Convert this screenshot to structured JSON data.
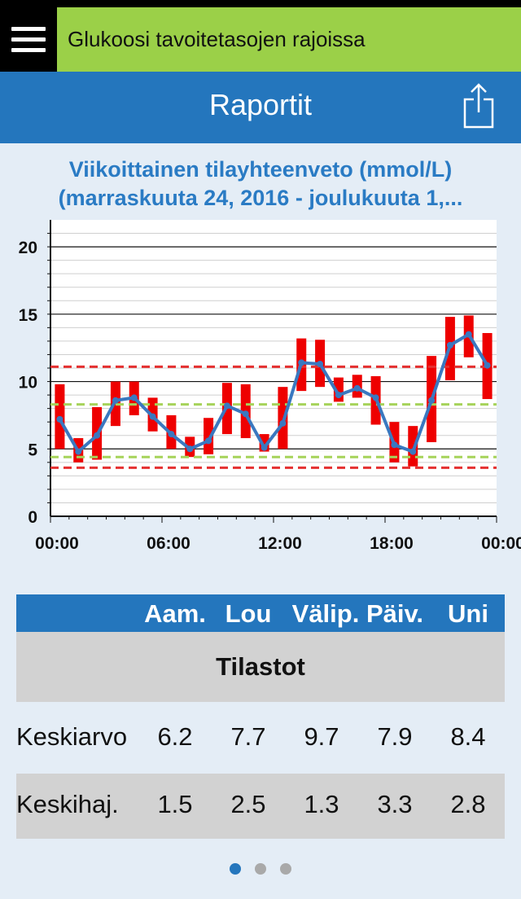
{
  "topbar": {
    "banner_text": "Glukoosi tavoitetasojen rajoissa"
  },
  "header": {
    "title": "Raportit"
  },
  "chart_title_line1": "Viikoittainen tilayhteenveto (mmol/L)",
  "chart_title_line2": "(marraskuuta 24, 2016 - joulukuuta 1,...",
  "colors": {
    "accent": "#2476bd",
    "banner": "#9bd048",
    "range_bar": "#ee0000",
    "mean_line": "#3a78c0",
    "limit_red": "#e53030",
    "limit_green": "#a6d35a"
  },
  "chart_data": {
    "type": "line",
    "title": "Viikoittainen tilayhteenveto (mmol/L)",
    "xlabel": "",
    "ylabel": "",
    "x_ticks": [
      "00:00",
      "06:00",
      "12:00",
      "18:00",
      "00:00"
    ],
    "y_ticks": [
      0,
      5,
      10,
      15,
      20
    ],
    "ylim": [
      0,
      22
    ],
    "xlim": [
      0,
      24
    ],
    "grid": true,
    "hours": [
      0.5,
      1.5,
      2.5,
      3.5,
      4.5,
      5.5,
      6.5,
      7.5,
      8.5,
      9.5,
      10.5,
      11.5,
      12.5,
      13.5,
      14.5,
      15.5,
      16.5,
      17.5,
      18.5,
      19.5,
      20.5,
      21.5,
      22.5,
      23.5
    ],
    "mean": [
      7.2,
      4.8,
      6.0,
      8.6,
      8.8,
      7.4,
      6.1,
      5.0,
      5.6,
      8.2,
      7.6,
      5.1,
      6.9,
      11.4,
      11.3,
      9.0,
      9.5,
      8.8,
      5.3,
      4.8,
      8.6,
      12.7,
      13.5,
      11.2
    ],
    "range_low": [
      5.0,
      4.0,
      4.2,
      6.7,
      7.5,
      6.3,
      5.0,
      4.4,
      4.6,
      6.1,
      5.8,
      4.8,
      5.0,
      9.3,
      9.6,
      8.5,
      8.8,
      6.8,
      4.0,
      3.7,
      5.5,
      10.1,
      11.8,
      8.7
    ],
    "range_high": [
      9.8,
      5.8,
      8.1,
      10.0,
      10.0,
      8.8,
      7.5,
      5.9,
      7.3,
      9.9,
      9.8,
      6.1,
      9.6,
      13.2,
      13.1,
      10.3,
      10.5,
      10.4,
      7.0,
      6.7,
      11.9,
      14.8,
      14.9,
      13.6
    ],
    "limits": {
      "red": [
        3.6,
        11.1
      ],
      "green": [
        4.4,
        8.3
      ]
    }
  },
  "table": {
    "columns": [
      "Aam.",
      "Lou",
      "Välip.",
      "Päiv.",
      "Uni"
    ],
    "section_title": "Tilastot",
    "rows": [
      {
        "label": "Keskiarvo",
        "values": [
          "6.2",
          "7.7",
          "9.7",
          "7.9",
          "8.4"
        ]
      },
      {
        "label": "Keskihaj.",
        "values": [
          "1.5",
          "2.5",
          "1.3",
          "3.3",
          "2.8"
        ]
      }
    ]
  },
  "pager": {
    "count": 3,
    "active": 0
  }
}
